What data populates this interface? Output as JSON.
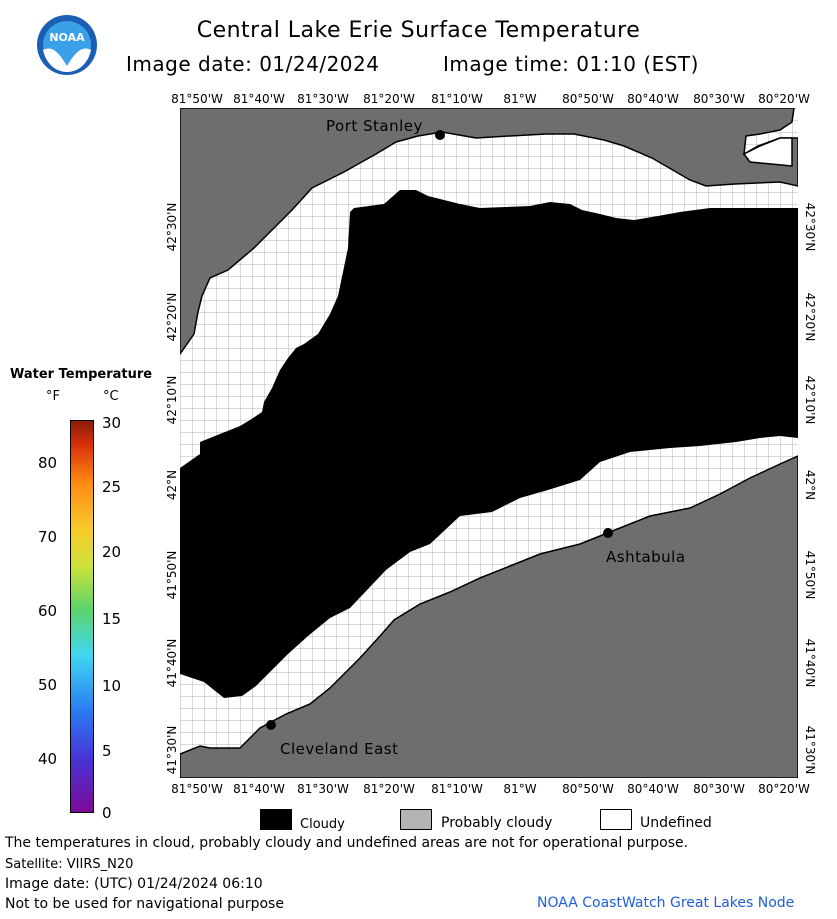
{
  "header": {
    "title": "Central Lake Erie Surface Temperature",
    "image_date": "Image date: 01/24/2024",
    "image_time": "Image time: 01:10 (EST)",
    "logo_text": "NOAA"
  },
  "map": {
    "lon_ticks": [
      "81°50'W",
      "81°40'W",
      "81°30'W",
      "81°20'W",
      "81°10'W",
      "81°W",
      "80°50'W",
      "80°40'W",
      "80°30'W",
      "80°20'W"
    ],
    "lat_ticks": [
      "42°30'N",
      "42°20'N",
      "42°10'N",
      "42°N",
      "41°50'N",
      "41°40'N",
      "41°30'N"
    ],
    "cities": [
      {
        "name": "Port Stanley"
      },
      {
        "name": "Ashtabula"
      },
      {
        "name": "Cleveland East"
      }
    ],
    "colors": {
      "land": "#6e6e6e",
      "cloudy": "#000000",
      "undefined": "#ffffff",
      "grid": "#a0a0a0"
    }
  },
  "colorbar": {
    "title": "Water Temperature",
    "unit_f": "°F",
    "unit_c": "°C",
    "f_ticks": [
      "80",
      "70",
      "60",
      "50",
      "40"
    ],
    "c_ticks": [
      "30",
      "25",
      "20",
      "15",
      "10",
      "5",
      "0"
    ]
  },
  "legend": {
    "cloudy": "Cloudy",
    "probably_cloudy": "Probably cloudy",
    "undefined": "Undefined",
    "colors": {
      "cloudy": "#000000",
      "probably_cloudy": "#b4b4b4",
      "undefined": "#ffffff"
    }
  },
  "footer": {
    "disclaimer": "The temperatures in cloud, probably cloudy and undefined areas are not for operational purpose.",
    "satellite": "Satellite: VIIRS_N20",
    "utc_date": "Image date: (UTC) 01/24/2024  06:10",
    "nav_warning": "Not to be used for navigational purpose",
    "credit": "NOAA CoastWatch Great Lakes Node"
  }
}
